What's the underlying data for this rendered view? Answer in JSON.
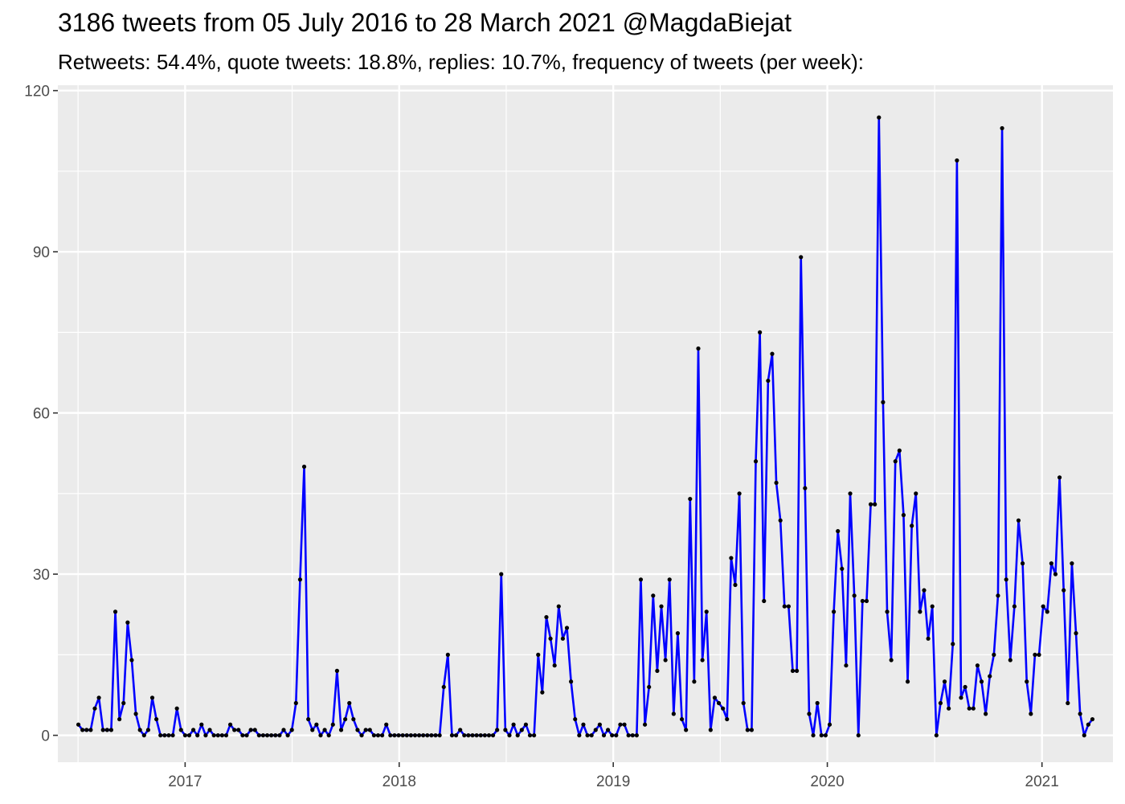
{
  "title": "3186 tweets from 05 July 2016 to 28 March 2021 @MagdaBiejat",
  "subtitle": "Retweets: 54.4%, quote tweets: 18.8%, replies: 10.7%, frequency of tweets (per week):",
  "colors": {
    "line": "#0000ff",
    "point": "#000000",
    "panel": "#ebebeb",
    "grid": "#ffffff",
    "tick_text": "#4d4d4d"
  },
  "chart_data": {
    "type": "line",
    "title": "3186 tweets from 05 July 2016 to 28 March 2021 @MagdaBiejat",
    "subtitle": "Retweets: 54.4%, quote tweets: 18.8%, replies: 10.7%, frequency of tweets (per week):",
    "xlabel": "",
    "ylabel": "",
    "x_start": "2016-07-03",
    "x_step_days": 7,
    "xlim": [
      "2016-05-29",
      "2021-05-02"
    ],
    "ylim": [
      -5,
      121
    ],
    "x_ticks": [
      "2017-01-01",
      "2018-01-01",
      "2019-01-01",
      "2020-01-01",
      "2021-01-01"
    ],
    "x_tick_labels": [
      "2017",
      "2018",
      "2019",
      "2020",
      "2021"
    ],
    "y_ticks": [
      0,
      30,
      60,
      90,
      120
    ],
    "y_tick_labels": [
      "0",
      "30",
      "60",
      "90",
      "120"
    ],
    "grid": true,
    "legend": "none",
    "series": [
      {
        "values": [
          2,
          1,
          1,
          1,
          5,
          7,
          1,
          1,
          1,
          23,
          3,
          6,
          21,
          14,
          4,
          1,
          0,
          1,
          7,
          3,
          0,
          0,
          0,
          0,
          5,
          1,
          0,
          0,
          1,
          0,
          2,
          0,
          1,
          0,
          0,
          0,
          0,
          2,
          1,
          1,
          0,
          0,
          1,
          1,
          0,
          0,
          0,
          0,
          0,
          0,
          1,
          0,
          1,
          6,
          29,
          50,
          3,
          1,
          2,
          0,
          1,
          0,
          2,
          12,
          1,
          3,
          6,
          3,
          1,
          0,
          1,
          1,
          0,
          0,
          0,
          2,
          0,
          0,
          0,
          0,
          0,
          0,
          0,
          0,
          0,
          0,
          0,
          0,
          0,
          9,
          15,
          0,
          0,
          1,
          0,
          0,
          0,
          0,
          0,
          0,
          0,
          0,
          1,
          30,
          1,
          0,
          2,
          0,
          1,
          2,
          0,
          0,
          15,
          8,
          22,
          18,
          13,
          24,
          18,
          20,
          10,
          3,
          0,
          2,
          0,
          0,
          1,
          2,
          0,
          1,
          0,
          0,
          2,
          2,
          0,
          0,
          0,
          29,
          2,
          9,
          26,
          12,
          24,
          14,
          29,
          4,
          19,
          3,
          1,
          44,
          10,
          72,
          14,
          23,
          1,
          7,
          6,
          5,
          3,
          33,
          28,
          45,
          6,
          1,
          1,
          51,
          75,
          25,
          66,
          71,
          47,
          40,
          24,
          24,
          12,
          12,
          89,
          46,
          4,
          0,
          6,
          0,
          0,
          2,
          23,
          38,
          31,
          13,
          45,
          26,
          0,
          25,
          25,
          43,
          43,
          115,
          62,
          23,
          14,
          51,
          53,
          41,
          10,
          39,
          45,
          23,
          27,
          18,
          24,
          0,
          6,
          10,
          5,
          17,
          107,
          7,
          9,
          5,
          5,
          13,
          10,
          4,
          11,
          15,
          26,
          113,
          29,
          14,
          24,
          40,
          32,
          10,
          4,
          15,
          15,
          24,
          23,
          32,
          30,
          48,
          27,
          6,
          32,
          19,
          4,
          0,
          2,
          3
        ]
      }
    ]
  }
}
